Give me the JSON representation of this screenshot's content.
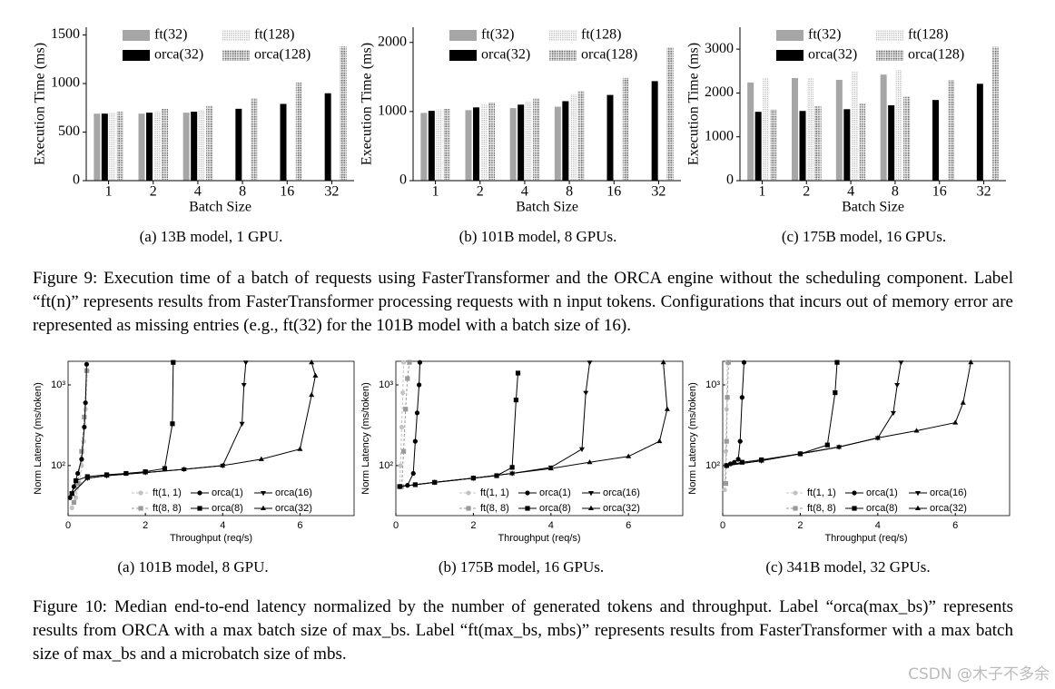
{
  "chart_data": [
    {
      "type": "bar",
      "caption": "(a) 13B model, 1 GPU.",
      "x_label": "Batch Size",
      "y_label": "Execution Time (ms)",
      "categories": [
        "1",
        "2",
        "4",
        "8",
        "16",
        "32"
      ],
      "ylim": [
        0,
        1580
      ],
      "yticks": [
        0,
        500,
        1000,
        1500
      ],
      "series": [
        {
          "name": "ft(32)",
          "color": "#a6a6a6",
          "pattern": "none",
          "values": [
            690,
            690,
            700,
            null,
            null,
            null
          ]
        },
        {
          "name": "orca(32)",
          "color": "#000000",
          "pattern": "none",
          "values": [
            690,
            700,
            710,
            740,
            790,
            900
          ]
        },
        {
          "name": "ft(128)",
          "color": "#b8b8b8",
          "pattern": "dots",
          "values": [
            705,
            710,
            730,
            null,
            null,
            null
          ]
        },
        {
          "name": "orca(128)",
          "color": "#2a2a2a",
          "pattern": "dense-dots",
          "values": [
            710,
            740,
            770,
            850,
            1010,
            1380
          ]
        }
      ]
    },
    {
      "type": "bar",
      "caption": "(b) 101B model, 8 GPUs.",
      "x_label": "Batch Size",
      "y_label": "Execution Time (ms)",
      "categories": [
        "1",
        "2",
        "4",
        "8",
        "16",
        "32"
      ],
      "ylim": [
        0,
        2220
      ],
      "yticks": [
        0,
        1000,
        2000
      ],
      "series": [
        {
          "name": "ft(32)",
          "color": "#a6a6a6",
          "pattern": "none",
          "values": [
            980,
            1020,
            1050,
            1070,
            null,
            null
          ]
        },
        {
          "name": "orca(32)",
          "color": "#000000",
          "pattern": "none",
          "values": [
            1010,
            1060,
            1100,
            1150,
            1240,
            1440
          ]
        },
        {
          "name": "ft(128)",
          "color": "#b8b8b8",
          "pattern": "dots",
          "values": [
            1030,
            1100,
            1150,
            1250,
            null,
            null
          ]
        },
        {
          "name": "orca(128)",
          "color": "#2a2a2a",
          "pattern": "dense-dots",
          "values": [
            1040,
            1130,
            1190,
            1300,
            1490,
            1930
          ]
        }
      ]
    },
    {
      "type": "bar",
      "caption": "(c) 175B model, 16 GPUs.",
      "x_label": "Batch Size",
      "y_label": "Execution Time (ms)",
      "categories": [
        "1",
        "2",
        "4",
        "8",
        "16",
        "32"
      ],
      "ylim": [
        0,
        3500
      ],
      "yticks": [
        0,
        1000,
        2000,
        3000
      ],
      "series": [
        {
          "name": "ft(32)",
          "color": "#a6a6a6",
          "pattern": "none",
          "values": [
            2240,
            2340,
            2300,
            2420,
            null,
            null
          ]
        },
        {
          "name": "orca(32)",
          "color": "#000000",
          "pattern": "none",
          "values": [
            1570,
            1590,
            1630,
            1720,
            1840,
            2210
          ]
        },
        {
          "name": "ft(128)",
          "color": "#b8b8b8",
          "pattern": "dots",
          "values": [
            2330,
            2350,
            2480,
            2520,
            null,
            null
          ]
        },
        {
          "name": "orca(128)",
          "color": "#2a2a2a",
          "pattern": "dense-dots",
          "values": [
            1620,
            1700,
            1760,
            1920,
            2290,
            3050
          ]
        }
      ]
    },
    {
      "type": "line",
      "caption": "(a) 101B model, 8 GPU.",
      "x_label": "Throughput (req/s)",
      "y_label": "Norm Latency (ms/token)",
      "log_y": true,
      "xlim": [
        0,
        7.4
      ],
      "xticks": [
        0,
        2,
        4,
        6
      ],
      "ylim": [
        24,
        1960
      ],
      "yticks": [
        {
          "value": 100,
          "label": "10²"
        },
        {
          "value": 1000,
          "label": "10³"
        }
      ],
      "series": [
        {
          "name": "ft(1, 1)",
          "color": "#c4c4c4",
          "dashed": true,
          "marker": "circle",
          "x": [
            0.1,
            0.2,
            0.3,
            0.35,
            0.4,
            0.45,
            0.5
          ],
          "y": [
            30,
            40,
            60,
            100,
            200,
            500,
            1500
          ]
        },
        {
          "name": "ft(8, 8)",
          "color": "#9a9a9a",
          "dashed": true,
          "marker": "square",
          "x": [
            0.15,
            0.25,
            0.35,
            0.42,
            0.48
          ],
          "y": [
            35,
            60,
            150,
            400,
            1500
          ]
        },
        {
          "name": "orca(1)",
          "color": "#000000",
          "dashed": false,
          "marker": "circle",
          "x": [
            0.05,
            0.15,
            0.25,
            0.35,
            0.42,
            0.45,
            0.48
          ],
          "y": [
            40,
            55,
            80,
            120,
            300,
            600,
            1800
          ]
        },
        {
          "name": "orca(8)",
          "color": "#000000",
          "dashed": false,
          "marker": "square",
          "x": [
            0.1,
            0.2,
            0.5,
            1,
            1.5,
            2,
            2.5,
            2.7,
            2.72
          ],
          "y": [
            45,
            65,
            73,
            77,
            80,
            84,
            92,
            330,
            1900
          ]
        },
        {
          "name": "orca(16)",
          "color": "#000000",
          "dashed": false,
          "marker": "triangle-down",
          "x": [
            0.1,
            0.5,
            1,
            2,
            3,
            4,
            4.5,
            4.55,
            4.6
          ],
          "y": [
            45,
            70,
            75,
            82,
            90,
            100,
            330,
            1000,
            1900
          ]
        },
        {
          "name": "orca(32)",
          "color": "#000000",
          "dashed": false,
          "marker": "triangle-up",
          "x": [
            0.1,
            0.5,
            1,
            2,
            3,
            4,
            5,
            6,
            6.3,
            6.4,
            6.3
          ],
          "y": [
            45,
            70,
            75,
            82,
            90,
            100,
            120,
            160,
            750,
            1300,
            1900
          ]
        }
      ]
    },
    {
      "type": "line",
      "caption": "(b) 175B model, 16 GPUs.",
      "x_label": "Throughput (req/s)",
      "y_label": "Norm Latency (ms/token)",
      "log_y": true,
      "xlim": [
        0,
        7.4
      ],
      "xticks": [
        0,
        2,
        4,
        6
      ],
      "ylim": [
        24,
        1960
      ],
      "yticks": [
        {
          "value": 100,
          "label": "10²"
        },
        {
          "value": 1000,
          "label": "10³"
        }
      ],
      "series": [
        {
          "name": "ft(1, 1)",
          "color": "#c4c4c4",
          "dashed": true,
          "marker": "circle",
          "x": [
            0.1,
            0.12,
            0.15,
            0.18,
            0.2
          ],
          "y": [
            55,
            100,
            300,
            800,
            1900
          ]
        },
        {
          "name": "ft(8, 8)",
          "color": "#9a9a9a",
          "dashed": true,
          "marker": "square",
          "x": [
            0.15,
            0.2,
            0.25,
            0.3,
            0.35
          ],
          "y": [
            55,
            150,
            500,
            1200,
            1900
          ]
        },
        {
          "name": "orca(1)",
          "color": "#000000",
          "dashed": false,
          "marker": "circle",
          "x": [
            0.1,
            0.3,
            0.45,
            0.5,
            0.55,
            0.6,
            0.62
          ],
          "y": [
            55,
            57,
            80,
            200,
            450,
            1000,
            1900
          ]
        },
        {
          "name": "orca(8)",
          "color": "#000000",
          "dashed": false,
          "marker": "square",
          "x": [
            0.1,
            0.5,
            1,
            2,
            2.6,
            3.0,
            3.1,
            3.15
          ],
          "y": [
            55,
            58,
            62,
            70,
            75,
            95,
            650,
            1400
          ]
        },
        {
          "name": "orca(16)",
          "color": "#000000",
          "dashed": false,
          "marker": "triangle-down",
          "x": [
            0.1,
            1,
            2,
            3,
            4,
            4.8,
            4.9,
            5.0
          ],
          "y": [
            55,
            62,
            70,
            80,
            95,
            160,
            800,
            1900
          ]
        },
        {
          "name": "orca(32)",
          "color": "#000000",
          "dashed": false,
          "marker": "triangle-up",
          "x": [
            0.1,
            1,
            2,
            3,
            4,
            5,
            6,
            6.8,
            7.0,
            6.9
          ],
          "y": [
            55,
            62,
            70,
            80,
            92,
            110,
            130,
            200,
            500,
            1900
          ]
        }
      ]
    },
    {
      "type": "line",
      "caption": "(c) 341B model, 32 GPUs.",
      "x_label": "Throughput (req/s)",
      "y_label": "Norm Latency (ms/token)",
      "log_y": true,
      "xlim": [
        0,
        7.4
      ],
      "xticks": [
        0,
        2,
        4,
        6
      ],
      "ylim": [
        24,
        1960
      ],
      "yticks": [
        {
          "value": 100,
          "label": "10²"
        },
        {
          "value": 1000,
          "label": "10³"
        }
      ],
      "series": [
        {
          "name": "ft(1, 1)",
          "color": "#c4c4c4",
          "dashed": true,
          "marker": "circle",
          "x": [
            0.05,
            0.08,
            0.1,
            0.12
          ],
          "y": [
            50,
            150,
            500,
            1900
          ]
        },
        {
          "name": "ft(8, 8)",
          "color": "#9a9a9a",
          "dashed": true,
          "marker": "square",
          "x": [
            0.08,
            0.1,
            0.12,
            0.15
          ],
          "y": [
            60,
            200,
            700,
            1900
          ]
        },
        {
          "name": "orca(1)",
          "color": "#000000",
          "dashed": false,
          "marker": "circle",
          "x": [
            0.1,
            0.2,
            0.3,
            0.4,
            0.45,
            0.5,
            0.55
          ],
          "y": [
            100,
            105,
            110,
            120,
            200,
            700,
            1900
          ]
        },
        {
          "name": "orca(8)",
          "color": "#000000",
          "dashed": false,
          "marker": "square",
          "x": [
            0.1,
            0.5,
            1,
            2,
            2.7,
            2.9,
            2.95
          ],
          "y": [
            100,
            110,
            118,
            140,
            180,
            800,
            1900
          ]
        },
        {
          "name": "orca(16)",
          "color": "#000000",
          "dashed": false,
          "marker": "triangle-down",
          "x": [
            0.1,
            1,
            2,
            3,
            4,
            4.4,
            4.5,
            4.6
          ],
          "y": [
            100,
            115,
            140,
            170,
            220,
            450,
            1000,
            1900
          ]
        },
        {
          "name": "orca(32)",
          "color": "#000000",
          "dashed": false,
          "marker": "triangle-up",
          "x": [
            0.1,
            1,
            2,
            3,
            4,
            5,
            6,
            6.2,
            6.4
          ],
          "y": [
            100,
            115,
            140,
            170,
            220,
            270,
            340,
            600,
            1900
          ]
        }
      ]
    }
  ],
  "figure9_caption": "Figure 9: Execution time of a batch of requests using FasterTransformer and the ORCA engine without the scheduling component. Label “ft(n)” represents results from FasterTransformer processing requests with n input tokens. Configurations that incurs out of memory error are represented as missing entries (e.g., ft(32) for the 101B model with a batch size of 16).",
  "figure10_caption": "Figure 10: Median end-to-end latency normalized by the number of generated tokens and throughput. Label “orca(max_bs)” represents results from ORCA with a max batch size of max_bs. Label “ft(max_bs, mbs)” represents results from FasterTransformer with a max batch size of max_bs and a microbatch size of mbs.",
  "watermark": "CSDN @木子不多余"
}
